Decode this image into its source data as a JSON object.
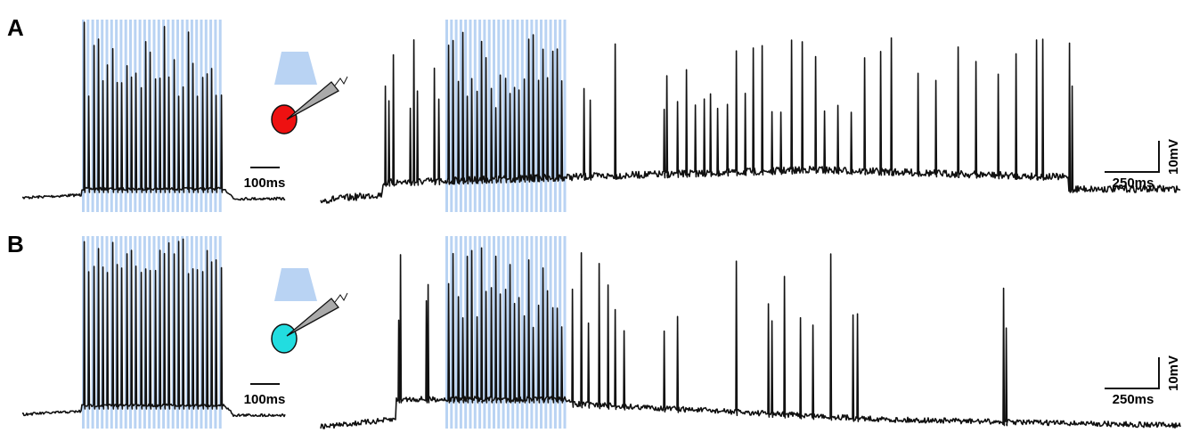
{
  "panels": [
    {
      "label": "A",
      "left_scale": "100ms",
      "right_scale_time": "250ms",
      "right_scale_voltage": "10mV"
    },
    {
      "label": "B",
      "left_scale": "100ms",
      "right_scale_time": "250ms",
      "right_scale_voltage": "10mV"
    }
  ]
}
